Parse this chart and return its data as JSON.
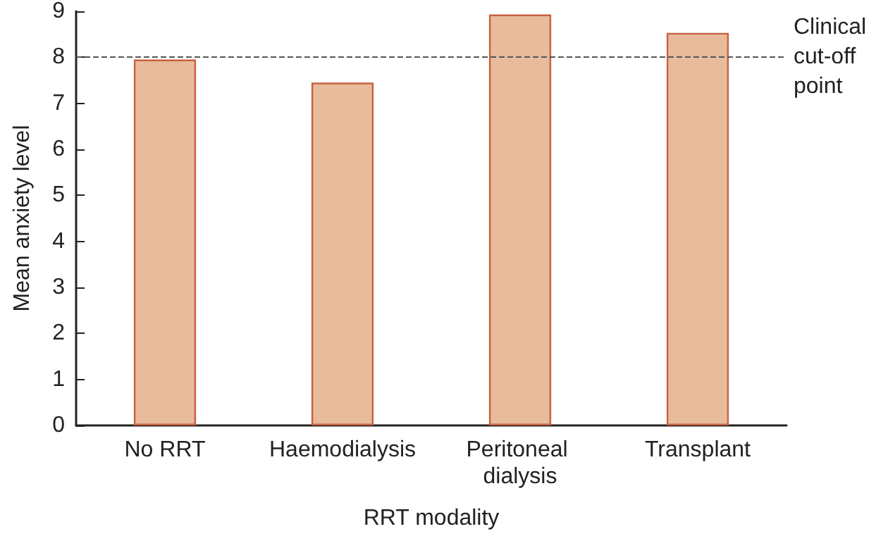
{
  "chart_data": {
    "type": "bar",
    "xlabel": "RRT modality",
    "ylabel": "Mean anxiety level",
    "categories": [
      "No RRT",
      "Haemodialysis",
      "Peritoneal dialysis",
      "Transplant"
    ],
    "values": [
      7.95,
      7.45,
      8.93,
      8.53
    ],
    "color": "#e8bb9c",
    "ylim": [
      0,
      9
    ],
    "yticks": [
      0,
      1,
      2,
      3,
      4,
      5,
      6,
      7,
      8,
      9
    ],
    "grid": false,
    "ref_lines": [
      {
        "axis": "y",
        "value": 8,
        "label": "Clinical cut-off point",
        "color": "#555555",
        "line_style": "dashed"
      }
    ]
  }
}
